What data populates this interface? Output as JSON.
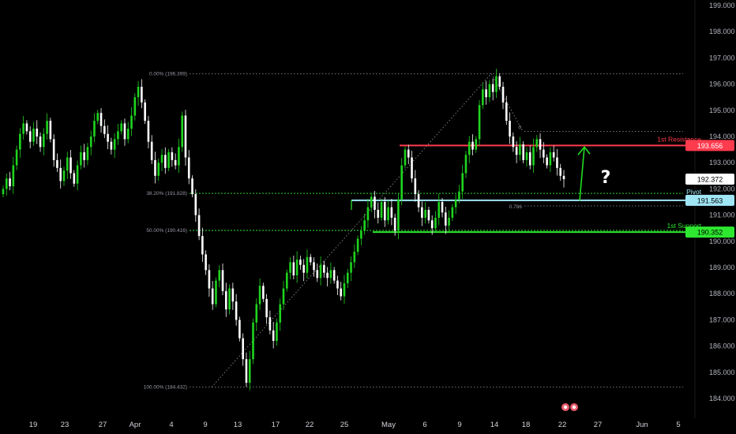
{
  "colors": {
    "background": "#000000",
    "bull": "#1fd41f",
    "bear": "#ffffff",
    "resistance": "#ff3b4e",
    "pivot": "#a0e6f5",
    "support": "#2ee830",
    "price_badge": "#ffffff",
    "arrow": "#22dd22"
  },
  "chart_data": {
    "type": "candlestick",
    "instrument_note": "",
    "ylim": [
      184.0,
      199.0
    ],
    "yticks": [
      "199.000",
      "198.000",
      "197.000",
      "196.000",
      "195.000",
      "194.000",
      "193.000",
      "192.000",
      "191.000",
      "190.000",
      "189.000",
      "188.000",
      "187.000",
      "186.000",
      "185.000",
      "184.000"
    ],
    "yvalues": [
      199,
      198,
      197,
      196,
      195,
      194,
      193,
      192,
      191,
      190,
      189,
      188,
      187,
      186,
      185,
      184
    ],
    "xticks": [
      "19",
      "23",
      "27",
      "Apr",
      "4",
      "9",
      "13",
      "17",
      "22",
      "25",
      "May",
      "6",
      "9",
      "14",
      "18",
      "22",
      "27",
      "Jun",
      "5"
    ],
    "current_price": "192.372",
    "levels": [
      {
        "name": "1st Resistance",
        "value": 193.656,
        "label": "193.656"
      },
      {
        "name": "Pivot",
        "value": 191.563,
        "label": "191.563"
      },
      {
        "name": "1st Support",
        "value": 190.352,
        "label": "190.352"
      }
    ],
    "fib_levels": [
      {
        "label": "0.00% (196.399)",
        "value": 196.399
      },
      {
        "label": "38.20% (191.828)",
        "value": 191.828
      },
      {
        "label": "50.00% (190.416)",
        "value": 190.416
      },
      {
        "label": "100.00% (184.432)",
        "value": 184.432
      }
    ],
    "fib_small": [
      {
        "label": "0",
        "value": 194.2
      },
      {
        "label": "0.786",
        "value": 191.35
      }
    ],
    "closes": [
      192.0,
      192.4,
      192.1,
      192.9,
      193.5,
      194.1,
      194.5,
      194.2,
      193.8,
      194.3,
      194.0,
      193.6,
      194.1,
      194.6,
      193.9,
      193.1,
      192.8,
      192.3,
      192.7,
      193.2,
      192.6,
      192.2,
      192.9,
      193.4,
      193.1,
      193.6,
      194.0,
      194.6,
      194.9,
      194.4,
      194.1,
      193.8,
      193.5,
      193.9,
      194.2,
      194.5,
      193.9,
      194.3,
      194.8,
      195.5,
      195.9,
      195.3,
      194.6,
      193.8,
      193.1,
      192.5,
      193.0,
      193.3,
      192.8,
      193.4,
      193.1,
      192.9,
      193.6,
      194.8,
      193.2,
      192.4,
      191.8,
      191.0,
      190.2,
      189.5,
      188.9,
      188.2,
      187.6,
      188.5,
      188.9,
      188.1,
      187.4,
      188.2,
      187.7,
      187.0,
      186.3,
      185.5,
      184.6,
      185.5,
      186.9,
      187.6,
      188.3,
      187.8,
      187.1,
      186.6,
      186.2,
      186.9,
      187.6,
      188.2,
      188.8,
      189.2,
      188.7,
      189.3,
      189.1,
      188.8,
      189.4,
      189.2,
      188.9,
      188.6,
      189.1,
      188.8,
      188.6,
      188.9,
      188.5,
      188.2,
      187.9,
      188.4,
      188.8,
      189.2,
      189.6,
      190.1,
      190.4,
      190.8,
      191.3,
      191.7,
      191.2,
      190.9,
      191.5,
      190.8,
      191.3,
      190.9,
      190.4,
      191.6,
      192.9,
      193.5,
      193.2,
      192.4,
      191.8,
      191.3,
      190.9,
      191.2,
      190.8,
      190.5,
      190.9,
      191.5,
      191.1,
      190.6,
      190.9,
      191.3,
      191.6,
      191.9,
      192.6,
      193.3,
      193.8,
      193.5,
      193.9,
      195.2,
      195.8,
      195.5,
      196.0,
      195.7,
      196.3,
      195.9,
      195.3,
      194.6,
      194.0,
      193.6,
      193.3,
      193.7,
      193.1,
      193.4,
      192.9,
      193.6,
      193.9,
      193.5,
      193.2,
      192.9,
      193.4,
      193.2,
      192.8,
      192.5,
      192.372
    ]
  }
}
